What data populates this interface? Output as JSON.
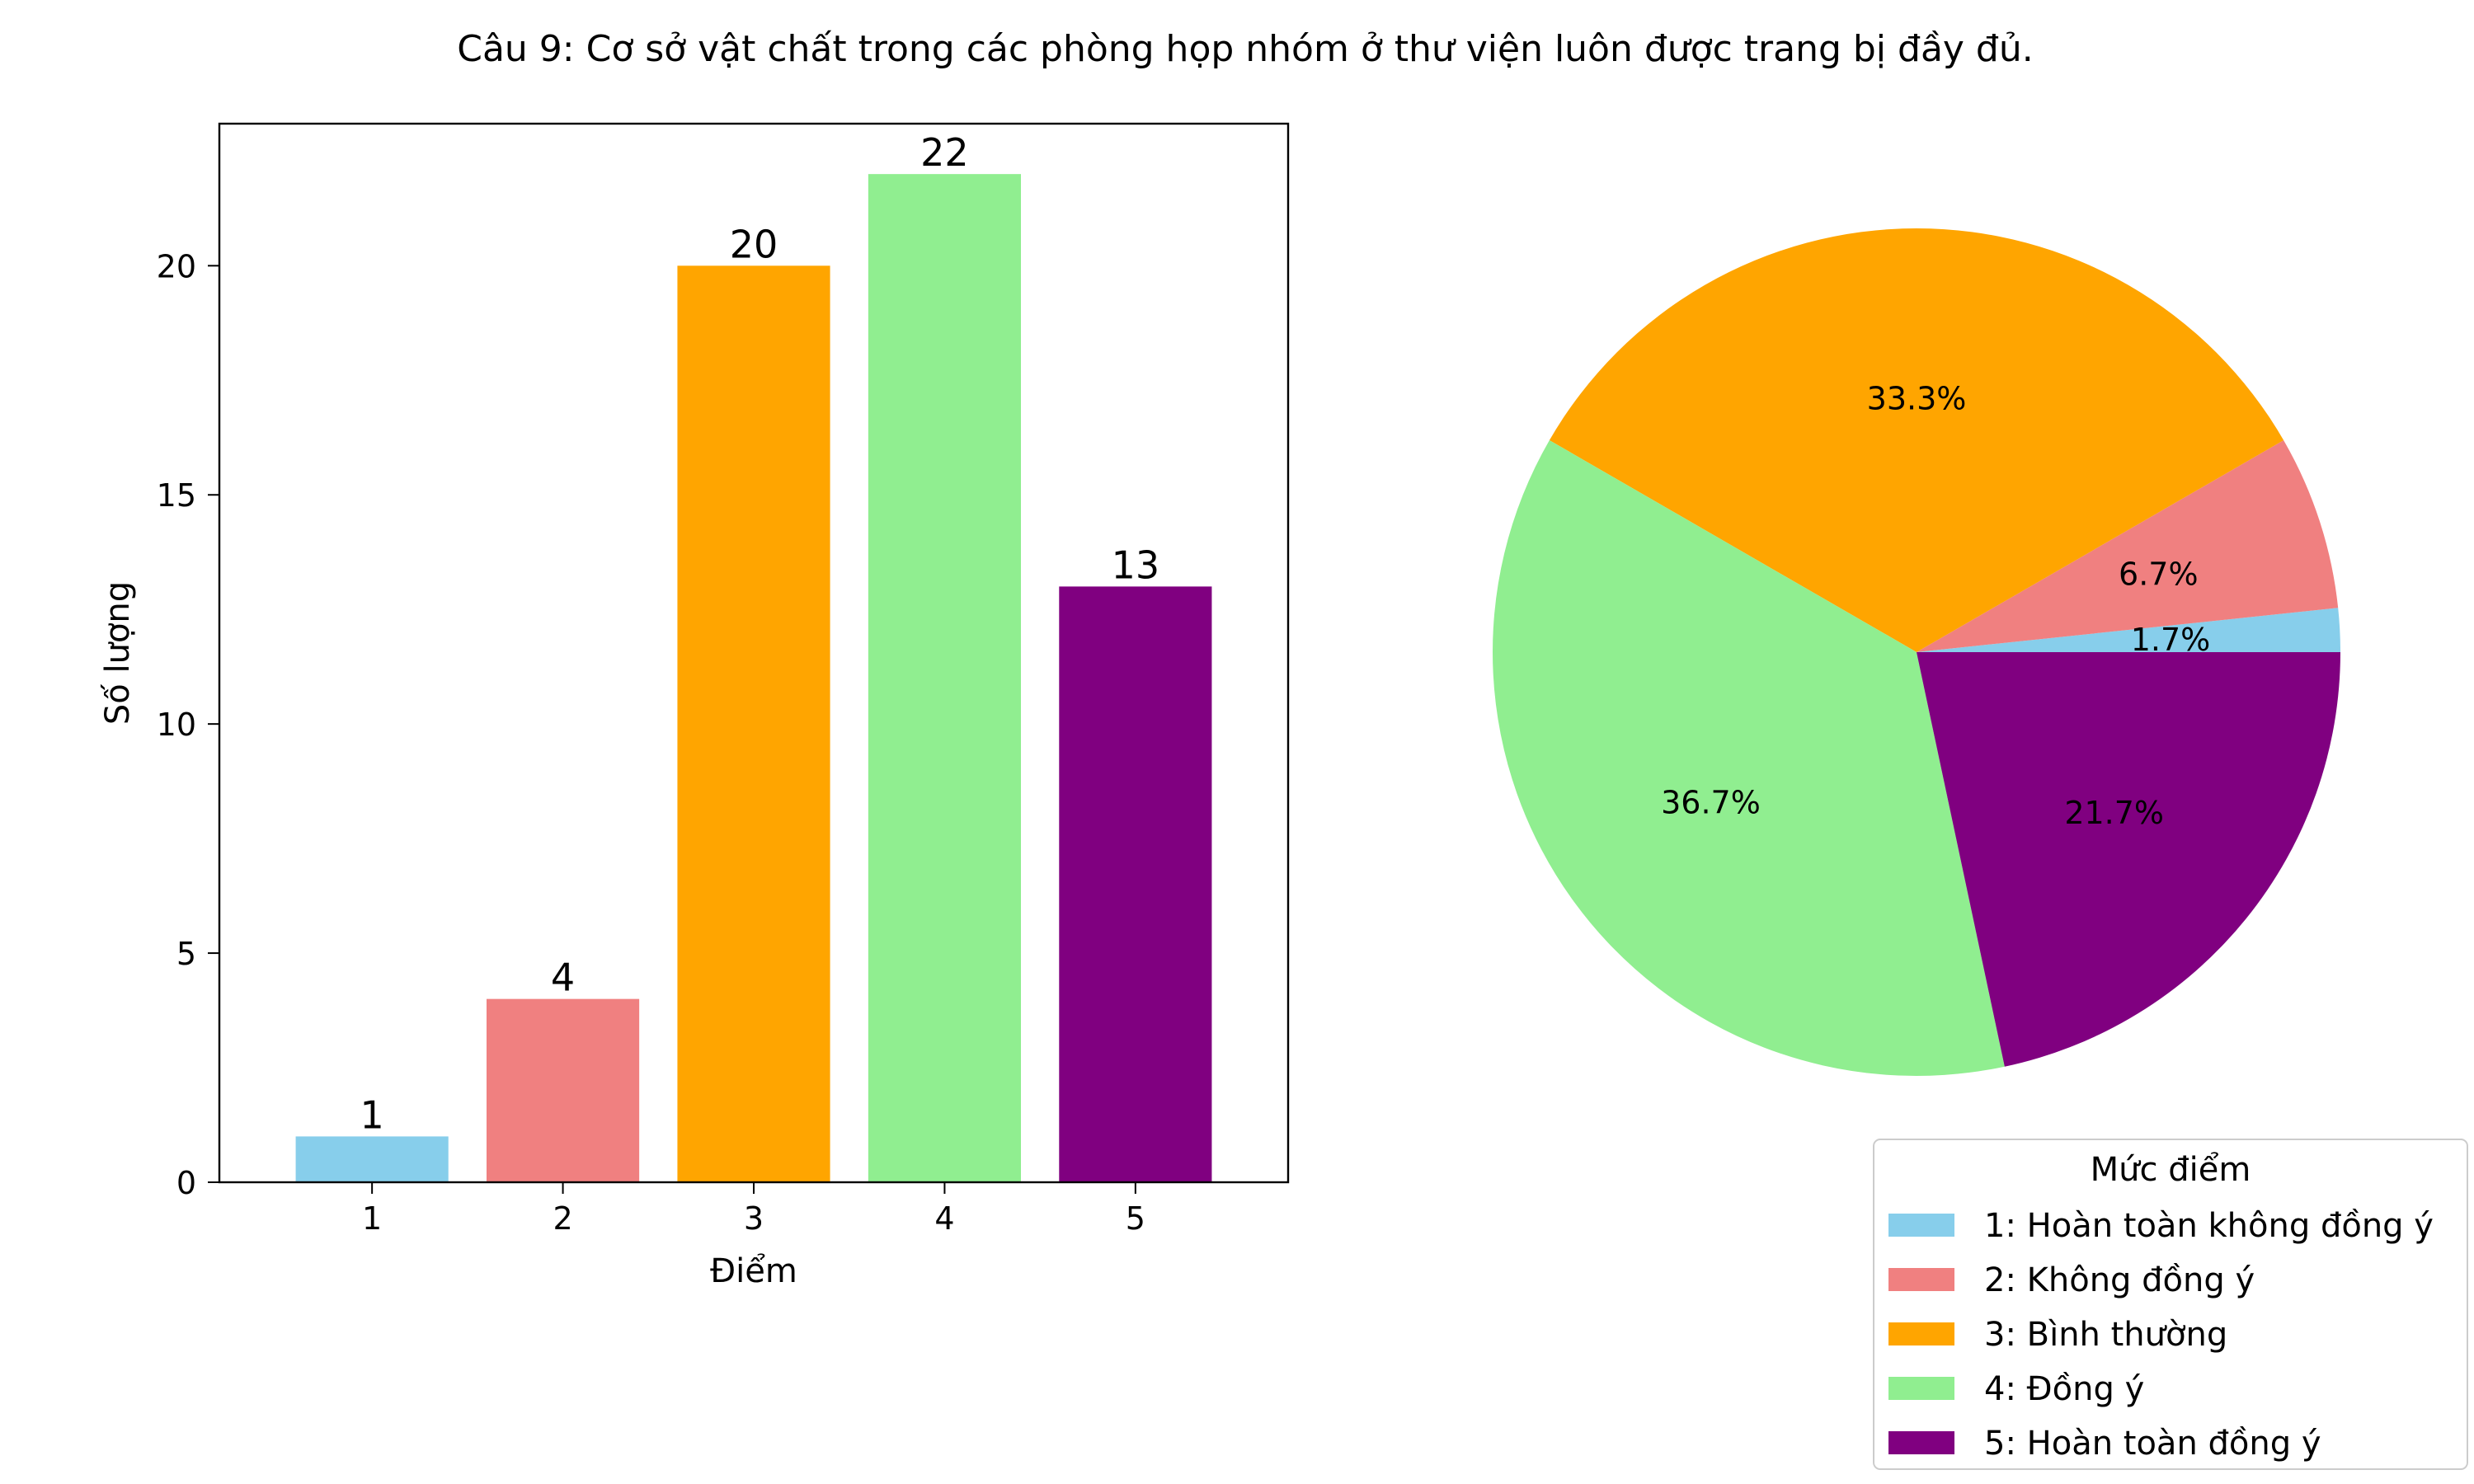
{
  "suptitle": "Câu 9: Cơ sở vật chất trong các phòng họp nhóm ở thư viện luôn được trang bị đầy đủ.",
  "chart_data": [
    {
      "type": "bar",
      "categories": [
        "1",
        "2",
        "3",
        "4",
        "5"
      ],
      "values": [
        1,
        4,
        20,
        22,
        13
      ],
      "data_labels": [
        "1",
        "4",
        "20",
        "22",
        "13"
      ],
      "colors": [
        "#87CEEB",
        "#F08080",
        "#FFA500",
        "#90EE90",
        "#800080"
      ],
      "xlabel": "Điểm",
      "ylabel": "Số lượng",
      "ylim": [
        0,
        23.1
      ],
      "yticks": [
        0,
        5,
        10,
        15,
        20
      ],
      "ytick_labels": [
        "0",
        "5",
        "10",
        "15",
        "20"
      ],
      "grid": false
    },
    {
      "type": "pie",
      "values": [
        1,
        4,
        20,
        22,
        13
      ],
      "percent_labels": [
        "1.7%",
        "6.7%",
        "33.3%",
        "36.7%",
        "21.7%"
      ],
      "colors": [
        "#87CEEB",
        "#F08080",
        "#FFA500",
        "#90EE90",
        "#800080"
      ],
      "legend_title": "Mức điểm",
      "legend_entries": [
        "1: Hoàn toàn không đồng ý",
        "2: Không đồng ý",
        "3: Bình thường",
        "4: Đồng ý",
        "5: Hoàn toàn đồng ý"
      ],
      "legend_placement": "lower-right"
    }
  ]
}
